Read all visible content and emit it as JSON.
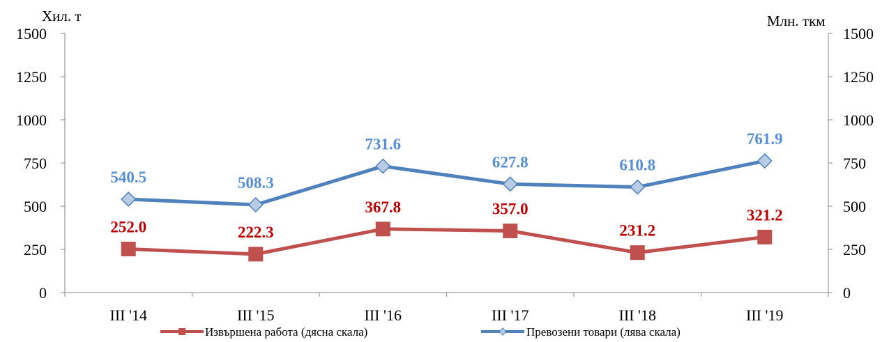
{
  "chart_data": {
    "type": "line",
    "categories": [
      "III '14",
      "III '15",
      "III '16",
      "III '17",
      "III '18",
      "III '19"
    ],
    "y_left_unit": "Хил. т",
    "y_right_unit": "Млн. ткм",
    "ylim_left": [
      0,
      1500
    ],
    "ylim_right": [
      0,
      1500
    ],
    "yticks": [
      0,
      250,
      500,
      750,
      1000,
      1250,
      1500
    ],
    "grid": false,
    "legend_position": "bottom",
    "series": [
      {
        "name": "Извършена работа (дясна скала)",
        "axis": "right",
        "marker": "square",
        "color": "#c0504d",
        "label_color": "#c00000",
        "values": [
          252.0,
          222.3,
          367.8,
          357.0,
          231.2,
          321.2
        ],
        "labels": [
          "252.0",
          "222.3",
          "367.8",
          "357.0",
          "231.2",
          "321.2"
        ]
      },
      {
        "name": "Превозени товари (лява скала)",
        "axis": "left",
        "marker": "diamond",
        "color": "#4f81bd",
        "marker_fill": "#b8cce4",
        "label_color": "#558ed5",
        "values": [
          540.5,
          508.3,
          731.6,
          627.8,
          610.8,
          761.9
        ],
        "labels": [
          "540.5",
          "508.3",
          "731.6",
          "627.8",
          "610.8",
          "761.9"
        ]
      }
    ]
  }
}
